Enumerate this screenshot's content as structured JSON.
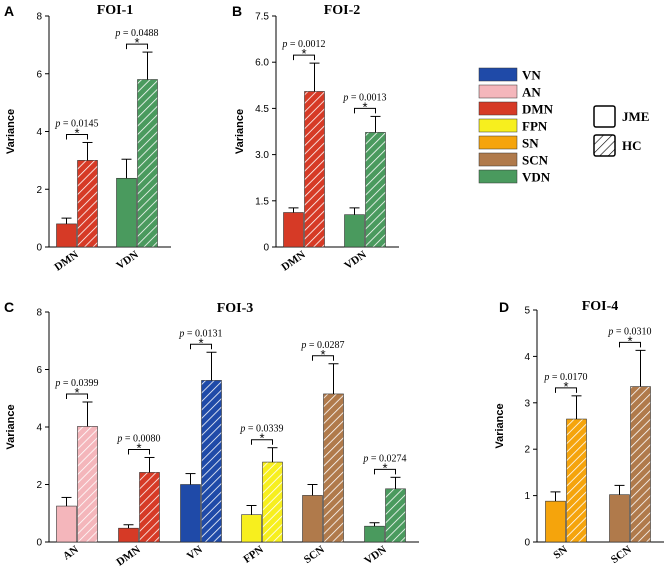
{
  "chart_data": [
    {
      "type": "bar",
      "panel": "A",
      "title": "FOI-1",
      "ylabel": "Variance",
      "ylim": [
        0,
        8
      ],
      "yticks": [
        "0",
        "2",
        "4",
        "6",
        "8"
      ],
      "categories": [
        "DMN",
        "VDN"
      ],
      "series": [
        {
          "name": "JME",
          "values": [
            0.8,
            2.38
          ],
          "errors": [
            0.2,
            0.66
          ]
        },
        {
          "name": "HC",
          "values": [
            3.0,
            5.8
          ],
          "errors": [
            0.62,
            0.95
          ]
        }
      ],
      "annotations": [
        {
          "category": "DMN",
          "text": "p = 0.0145",
          "mark": "*"
        },
        {
          "category": "VDN",
          "text": "p = 0.0488",
          "mark": "*"
        }
      ]
    },
    {
      "type": "bar",
      "panel": "B",
      "title": "FOI-2",
      "ylabel": "Variance",
      "ylim": [
        0,
        7.5
      ],
      "yticks": [
        "0",
        "1.5",
        "3.0",
        "4.5",
        "6.0",
        "7.5"
      ],
      "categories": [
        "DMN",
        "VDN"
      ],
      "series": [
        {
          "name": "JME",
          "values": [
            1.12,
            1.05
          ],
          "errors": [
            0.15,
            0.22
          ]
        },
        {
          "name": "HC",
          "values": [
            5.05,
            3.72
          ],
          "errors": [
            0.92,
            0.52
          ]
        }
      ],
      "annotations": [
        {
          "category": "DMN",
          "text": "p = 0.0012",
          "mark": "*"
        },
        {
          "category": "VDN",
          "text": "p = 0.0013",
          "mark": "*"
        }
      ]
    },
    {
      "type": "bar",
      "panel": "C",
      "title": "FOI-3",
      "ylabel": "Variance",
      "ylim": [
        0,
        8
      ],
      "yticks": [
        "0",
        "2",
        "4",
        "6",
        "8"
      ],
      "categories": [
        "AN",
        "DMN",
        "VN",
        "FPN",
        "SCN",
        "VDN"
      ],
      "series": [
        {
          "name": "JME",
          "values": [
            1.25,
            0.48,
            2.0,
            0.95,
            1.62,
            0.55
          ],
          "errors": [
            0.3,
            0.12,
            0.38,
            0.32,
            0.38,
            0.12
          ]
        },
        {
          "name": "HC",
          "values": [
            4.02,
            2.42,
            5.62,
            2.78,
            5.15,
            1.85
          ],
          "errors": [
            0.85,
            0.52,
            0.98,
            0.5,
            1.05,
            0.4
          ]
        }
      ],
      "annotations": [
        {
          "category": "AN",
          "text": "p = 0.0399",
          "mark": "*"
        },
        {
          "category": "DMN",
          "text": "p = 0.0080",
          "mark": "*"
        },
        {
          "category": "VN",
          "text": "p = 0.0131",
          "mark": "*"
        },
        {
          "category": "FPN",
          "text": "p = 0.0339",
          "mark": "*"
        },
        {
          "category": "SCN",
          "text": "p = 0.0287",
          "mark": "*"
        },
        {
          "category": "VDN",
          "text": "p = 0.0274",
          "mark": "*"
        }
      ]
    },
    {
      "type": "bar",
      "panel": "D",
      "title": "FOI-4",
      "ylabel": "Variance",
      "ylim": [
        0,
        5
      ],
      "yticks": [
        "0",
        "1",
        "2",
        "3",
        "4",
        "5"
      ],
      "categories": [
        "SN",
        "SCN"
      ],
      "series": [
        {
          "name": "JME",
          "values": [
            0.88,
            1.02
          ],
          "errors": [
            0.2,
            0.2
          ]
        },
        {
          "name": "HC",
          "values": [
            2.65,
            3.35
          ],
          "errors": [
            0.5,
            0.78
          ]
        }
      ],
      "annotations": [
        {
          "category": "SN",
          "text": "p = 0.0170",
          "mark": "*"
        },
        {
          "category": "SCN",
          "text": "p = 0.0310",
          "mark": "*"
        }
      ]
    }
  ],
  "legend": {
    "networks": [
      {
        "label": "VN",
        "color": "#1f4aa8"
      },
      {
        "label": "AN",
        "color": "#f4b6bb"
      },
      {
        "label": "DMN",
        "color": "#d63a26"
      },
      {
        "label": "FPN",
        "color": "#f7ef1e"
      },
      {
        "label": "SN",
        "color": "#f5a40c"
      },
      {
        "label": "SCN",
        "color": "#b07a4b"
      },
      {
        "label": "VDN",
        "color": "#4a9a5e"
      }
    ],
    "groups": [
      {
        "label": "JME",
        "pattern": "solid"
      },
      {
        "label": "HC",
        "pattern": "hatched"
      }
    ]
  }
}
